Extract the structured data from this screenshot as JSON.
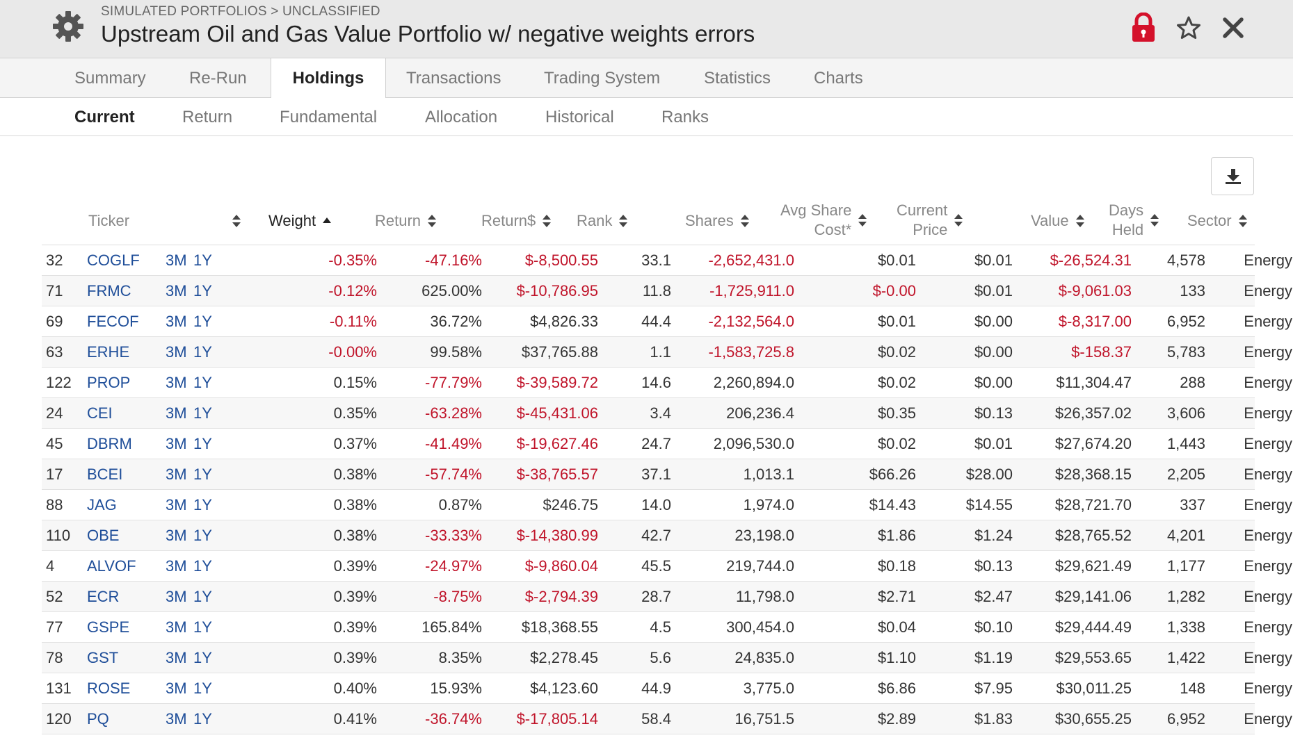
{
  "header": {
    "breadcrumb": "SIMULATED PORTFOLIOS > UNCLASSIFIED",
    "title": "Upstream Oil and Gas Value Portfolio w/ negative weights errors"
  },
  "colors": {
    "negative": "#c0142a",
    "link": "#1f4e99",
    "lock": "#d4112b"
  },
  "tabs": [
    {
      "label": "Summary"
    },
    {
      "label": "Re-Run"
    },
    {
      "label": "Holdings"
    },
    {
      "label": "Transactions"
    },
    {
      "label": "Trading System"
    },
    {
      "label": "Statistics"
    },
    {
      "label": "Charts"
    }
  ],
  "active_tab": "Holdings",
  "subtabs": [
    {
      "label": "Current"
    },
    {
      "label": "Return"
    },
    {
      "label": "Fundamental"
    },
    {
      "label": "Allocation"
    },
    {
      "label": "Historical"
    },
    {
      "label": "Ranks"
    }
  ],
  "active_subtab": "Current",
  "columns": {
    "ticker": "Ticker",
    "weight": "Weight",
    "return": "Return",
    "return_dollar": "Return$",
    "rank": "Rank",
    "shares": "Shares",
    "avg_cost_1": "Avg Share",
    "avg_cost_2": "Cost*",
    "price_1": "Current",
    "price_2": "Price",
    "value": "Value",
    "days_1": "Days",
    "days_2": "Held",
    "sector": "Sector"
  },
  "sorted_by": "Weight ascending",
  "link_3m": "3M",
  "link_1y": "1Y",
  "rows": [
    {
      "id": "32",
      "ticker": "COGLF",
      "weight": "-0.35%",
      "ret": "-47.16%",
      "ret_d": "$-8,500.55",
      "rank": "33.1",
      "shares": "-2,652,431.0",
      "cost": "$0.01",
      "price": "$0.01",
      "value": "$-26,524.31",
      "days": "4,578",
      "sector": "Energy"
    },
    {
      "id": "71",
      "ticker": "FRMC",
      "weight": "-0.12%",
      "ret": "625.00%",
      "ret_d": "$-10,786.95",
      "rank": "11.8",
      "shares": "-1,725,911.0",
      "cost": "$-0.00",
      "price": "$0.01",
      "value": "$-9,061.03",
      "days": "133",
      "sector": "Energy"
    },
    {
      "id": "69",
      "ticker": "FECOF",
      "weight": "-0.11%",
      "ret": "36.72%",
      "ret_d": "$4,826.33",
      "rank": "44.4",
      "shares": "-2,132,564.0",
      "cost": "$0.01",
      "price": "$0.00",
      "value": "$-8,317.00",
      "days": "6,952",
      "sector": "Energy"
    },
    {
      "id": "63",
      "ticker": "ERHE",
      "weight": "-0.00%",
      "ret": "99.58%",
      "ret_d": "$37,765.88",
      "rank": "1.1",
      "shares": "-1,583,725.8",
      "cost": "$0.02",
      "price": "$0.00",
      "value": "$-158.37",
      "days": "5,783",
      "sector": "Energy"
    },
    {
      "id": "122",
      "ticker": "PROP",
      "weight": "0.15%",
      "ret": "-77.79%",
      "ret_d": "$-39,589.72",
      "rank": "14.6",
      "shares": "2,260,894.0",
      "cost": "$0.02",
      "price": "$0.00",
      "value": "$11,304.47",
      "days": "288",
      "sector": "Energy"
    },
    {
      "id": "24",
      "ticker": "CEI",
      "weight": "0.35%",
      "ret": "-63.28%",
      "ret_d": "$-45,431.06",
      "rank": "3.4",
      "shares": "206,236.4",
      "cost": "$0.35",
      "price": "$0.13",
      "value": "$26,357.02",
      "days": "3,606",
      "sector": "Energy"
    },
    {
      "id": "45",
      "ticker": "DBRM",
      "weight": "0.37%",
      "ret": "-41.49%",
      "ret_d": "$-19,627.46",
      "rank": "24.7",
      "shares": "2,096,530.0",
      "cost": "$0.02",
      "price": "$0.01",
      "value": "$27,674.20",
      "days": "1,443",
      "sector": "Energy"
    },
    {
      "id": "17",
      "ticker": "BCEI",
      "weight": "0.38%",
      "ret": "-57.74%",
      "ret_d": "$-38,765.57",
      "rank": "37.1",
      "shares": "1,013.1",
      "cost": "$66.26",
      "price": "$28.00",
      "value": "$28,368.15",
      "days": "2,205",
      "sector": "Energy"
    },
    {
      "id": "88",
      "ticker": "JAG",
      "weight": "0.38%",
      "ret": "0.87%",
      "ret_d": "$246.75",
      "rank": "14.0",
      "shares": "1,974.0",
      "cost": "$14.43",
      "price": "$14.55",
      "value": "$28,721.70",
      "days": "337",
      "sector": "Energy"
    },
    {
      "id": "110",
      "ticker": "OBE",
      "weight": "0.38%",
      "ret": "-33.33%",
      "ret_d": "$-14,380.99",
      "rank": "42.7",
      "shares": "23,198.0",
      "cost": "$1.86",
      "price": "$1.24",
      "value": "$28,765.52",
      "days": "4,201",
      "sector": "Energy"
    },
    {
      "id": "4",
      "ticker": "ALVOF",
      "weight": "0.39%",
      "ret": "-24.97%",
      "ret_d": "$-9,860.04",
      "rank": "45.5",
      "shares": "219,744.0",
      "cost": "$0.18",
      "price": "$0.13",
      "value": "$29,621.49",
      "days": "1,177",
      "sector": "Energy"
    },
    {
      "id": "52",
      "ticker": "ECR",
      "weight": "0.39%",
      "ret": "-8.75%",
      "ret_d": "$-2,794.39",
      "rank": "28.7",
      "shares": "11,798.0",
      "cost": "$2.71",
      "price": "$2.47",
      "value": "$29,141.06",
      "days": "1,282",
      "sector": "Energy"
    },
    {
      "id": "77",
      "ticker": "GSPE",
      "weight": "0.39%",
      "ret": "165.84%",
      "ret_d": "$18,368.55",
      "rank": "4.5",
      "shares": "300,454.0",
      "cost": "$0.04",
      "price": "$0.10",
      "value": "$29,444.49",
      "days": "1,338",
      "sector": "Energy"
    },
    {
      "id": "78",
      "ticker": "GST",
      "weight": "0.39%",
      "ret": "8.35%",
      "ret_d": "$2,278.45",
      "rank": "5.6",
      "shares": "24,835.0",
      "cost": "$1.10",
      "price": "$1.19",
      "value": "$29,553.65",
      "days": "1,422",
      "sector": "Energy"
    },
    {
      "id": "131",
      "ticker": "ROSE",
      "weight": "0.40%",
      "ret": "15.93%",
      "ret_d": "$4,123.60",
      "rank": "44.9",
      "shares": "3,775.0",
      "cost": "$6.86",
      "price": "$7.95",
      "value": "$30,011.25",
      "days": "148",
      "sector": "Energy"
    },
    {
      "id": "120",
      "ticker": "PQ",
      "weight": "0.41%",
      "ret": "-36.74%",
      "ret_d": "$-17,805.14",
      "rank": "58.4",
      "shares": "16,751.5",
      "cost": "$2.89",
      "price": "$1.83",
      "value": "$30,655.25",
      "days": "6,952",
      "sector": "Energy"
    }
  ]
}
